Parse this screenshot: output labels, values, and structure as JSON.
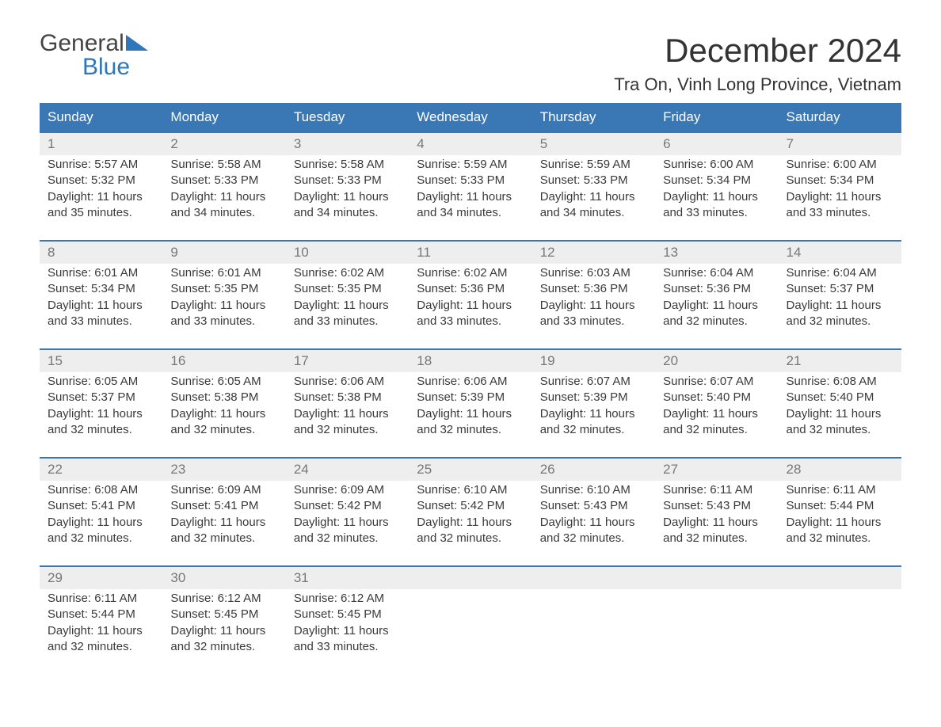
{
  "brand": {
    "line1": "General",
    "line2": "Blue"
  },
  "title": "December 2024",
  "location": "Tra On, Vinh Long Province, Vietnam",
  "colors": {
    "header_bg": "#3a78b5",
    "header_text": "#ffffff",
    "daynum_bg": "#eeeeee",
    "daynum_text": "#777777",
    "row_border": "#3a78b5",
    "body_text": "#3a3a3a",
    "brand_blue": "#2f77bb"
  },
  "weekdays": [
    "Sunday",
    "Monday",
    "Tuesday",
    "Wednesday",
    "Thursday",
    "Friday",
    "Saturday"
  ],
  "weeks": [
    [
      {
        "day": "1",
        "sunrise": "Sunrise: 5:57 AM",
        "sunset": "Sunset: 5:32 PM",
        "daylight1": "Daylight: 11 hours",
        "daylight2": "and 35 minutes."
      },
      {
        "day": "2",
        "sunrise": "Sunrise: 5:58 AM",
        "sunset": "Sunset: 5:33 PM",
        "daylight1": "Daylight: 11 hours",
        "daylight2": "and 34 minutes."
      },
      {
        "day": "3",
        "sunrise": "Sunrise: 5:58 AM",
        "sunset": "Sunset: 5:33 PM",
        "daylight1": "Daylight: 11 hours",
        "daylight2": "and 34 minutes."
      },
      {
        "day": "4",
        "sunrise": "Sunrise: 5:59 AM",
        "sunset": "Sunset: 5:33 PM",
        "daylight1": "Daylight: 11 hours",
        "daylight2": "and 34 minutes."
      },
      {
        "day": "5",
        "sunrise": "Sunrise: 5:59 AM",
        "sunset": "Sunset: 5:33 PM",
        "daylight1": "Daylight: 11 hours",
        "daylight2": "and 34 minutes."
      },
      {
        "day": "6",
        "sunrise": "Sunrise: 6:00 AM",
        "sunset": "Sunset: 5:34 PM",
        "daylight1": "Daylight: 11 hours",
        "daylight2": "and 33 minutes."
      },
      {
        "day": "7",
        "sunrise": "Sunrise: 6:00 AM",
        "sunset": "Sunset: 5:34 PM",
        "daylight1": "Daylight: 11 hours",
        "daylight2": "and 33 minutes."
      }
    ],
    [
      {
        "day": "8",
        "sunrise": "Sunrise: 6:01 AM",
        "sunset": "Sunset: 5:34 PM",
        "daylight1": "Daylight: 11 hours",
        "daylight2": "and 33 minutes."
      },
      {
        "day": "9",
        "sunrise": "Sunrise: 6:01 AM",
        "sunset": "Sunset: 5:35 PM",
        "daylight1": "Daylight: 11 hours",
        "daylight2": "and 33 minutes."
      },
      {
        "day": "10",
        "sunrise": "Sunrise: 6:02 AM",
        "sunset": "Sunset: 5:35 PM",
        "daylight1": "Daylight: 11 hours",
        "daylight2": "and 33 minutes."
      },
      {
        "day": "11",
        "sunrise": "Sunrise: 6:02 AM",
        "sunset": "Sunset: 5:36 PM",
        "daylight1": "Daylight: 11 hours",
        "daylight2": "and 33 minutes."
      },
      {
        "day": "12",
        "sunrise": "Sunrise: 6:03 AM",
        "sunset": "Sunset: 5:36 PM",
        "daylight1": "Daylight: 11 hours",
        "daylight2": "and 33 minutes."
      },
      {
        "day": "13",
        "sunrise": "Sunrise: 6:04 AM",
        "sunset": "Sunset: 5:36 PM",
        "daylight1": "Daylight: 11 hours",
        "daylight2": "and 32 minutes."
      },
      {
        "day": "14",
        "sunrise": "Sunrise: 6:04 AM",
        "sunset": "Sunset: 5:37 PM",
        "daylight1": "Daylight: 11 hours",
        "daylight2": "and 32 minutes."
      }
    ],
    [
      {
        "day": "15",
        "sunrise": "Sunrise: 6:05 AM",
        "sunset": "Sunset: 5:37 PM",
        "daylight1": "Daylight: 11 hours",
        "daylight2": "and 32 minutes."
      },
      {
        "day": "16",
        "sunrise": "Sunrise: 6:05 AM",
        "sunset": "Sunset: 5:38 PM",
        "daylight1": "Daylight: 11 hours",
        "daylight2": "and 32 minutes."
      },
      {
        "day": "17",
        "sunrise": "Sunrise: 6:06 AM",
        "sunset": "Sunset: 5:38 PM",
        "daylight1": "Daylight: 11 hours",
        "daylight2": "and 32 minutes."
      },
      {
        "day": "18",
        "sunrise": "Sunrise: 6:06 AM",
        "sunset": "Sunset: 5:39 PM",
        "daylight1": "Daylight: 11 hours",
        "daylight2": "and 32 minutes."
      },
      {
        "day": "19",
        "sunrise": "Sunrise: 6:07 AM",
        "sunset": "Sunset: 5:39 PM",
        "daylight1": "Daylight: 11 hours",
        "daylight2": "and 32 minutes."
      },
      {
        "day": "20",
        "sunrise": "Sunrise: 6:07 AM",
        "sunset": "Sunset: 5:40 PM",
        "daylight1": "Daylight: 11 hours",
        "daylight2": "and 32 minutes."
      },
      {
        "day": "21",
        "sunrise": "Sunrise: 6:08 AM",
        "sunset": "Sunset: 5:40 PM",
        "daylight1": "Daylight: 11 hours",
        "daylight2": "and 32 minutes."
      }
    ],
    [
      {
        "day": "22",
        "sunrise": "Sunrise: 6:08 AM",
        "sunset": "Sunset: 5:41 PM",
        "daylight1": "Daylight: 11 hours",
        "daylight2": "and 32 minutes."
      },
      {
        "day": "23",
        "sunrise": "Sunrise: 6:09 AM",
        "sunset": "Sunset: 5:41 PM",
        "daylight1": "Daylight: 11 hours",
        "daylight2": "and 32 minutes."
      },
      {
        "day": "24",
        "sunrise": "Sunrise: 6:09 AM",
        "sunset": "Sunset: 5:42 PM",
        "daylight1": "Daylight: 11 hours",
        "daylight2": "and 32 minutes."
      },
      {
        "day": "25",
        "sunrise": "Sunrise: 6:10 AM",
        "sunset": "Sunset: 5:42 PM",
        "daylight1": "Daylight: 11 hours",
        "daylight2": "and 32 minutes."
      },
      {
        "day": "26",
        "sunrise": "Sunrise: 6:10 AM",
        "sunset": "Sunset: 5:43 PM",
        "daylight1": "Daylight: 11 hours",
        "daylight2": "and 32 minutes."
      },
      {
        "day": "27",
        "sunrise": "Sunrise: 6:11 AM",
        "sunset": "Sunset: 5:43 PM",
        "daylight1": "Daylight: 11 hours",
        "daylight2": "and 32 minutes."
      },
      {
        "day": "28",
        "sunrise": "Sunrise: 6:11 AM",
        "sunset": "Sunset: 5:44 PM",
        "daylight1": "Daylight: 11 hours",
        "daylight2": "and 32 minutes."
      }
    ],
    [
      {
        "day": "29",
        "sunrise": "Sunrise: 6:11 AM",
        "sunset": "Sunset: 5:44 PM",
        "daylight1": "Daylight: 11 hours",
        "daylight2": "and 32 minutes."
      },
      {
        "day": "30",
        "sunrise": "Sunrise: 6:12 AM",
        "sunset": "Sunset: 5:45 PM",
        "daylight1": "Daylight: 11 hours",
        "daylight2": "and 32 minutes."
      },
      {
        "day": "31",
        "sunrise": "Sunrise: 6:12 AM",
        "sunset": "Sunset: 5:45 PM",
        "daylight1": "Daylight: 11 hours",
        "daylight2": "and 33 minutes."
      },
      null,
      null,
      null,
      null
    ]
  ]
}
